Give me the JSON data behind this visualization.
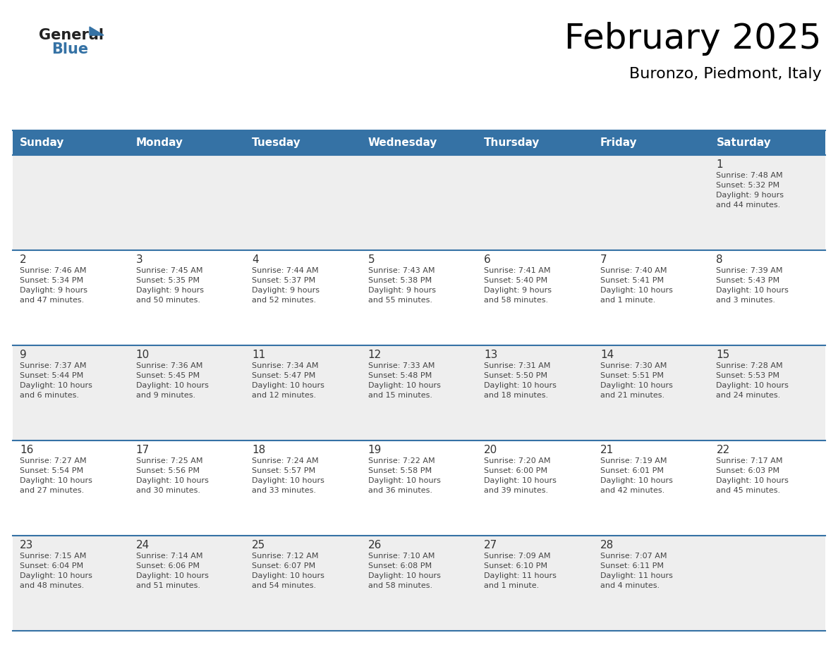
{
  "title": "February 2025",
  "subtitle": "Buronzo, Piedmont, Italy",
  "header_color": "#3572a5",
  "header_text_color": "#ffffff",
  "day_names": [
    "Sunday",
    "Monday",
    "Tuesday",
    "Wednesday",
    "Thursday",
    "Friday",
    "Saturday"
  ],
  "cell_bg_even": "#eeeeee",
  "cell_bg_odd": "#ffffff",
  "grid_line_color": "#3572a5",
  "number_color": "#333333",
  "text_color": "#444444",
  "logo_text_color": "#222222",
  "logo_blue_color": "#3572a5",
  "days": [
    {
      "day": 1,
      "col": 6,
      "row": 0,
      "sunrise": "7:48 AM",
      "sunset": "5:32 PM",
      "daylight": "9 hours and 44 minutes"
    },
    {
      "day": 2,
      "col": 0,
      "row": 1,
      "sunrise": "7:46 AM",
      "sunset": "5:34 PM",
      "daylight": "9 hours and 47 minutes"
    },
    {
      "day": 3,
      "col": 1,
      "row": 1,
      "sunrise": "7:45 AM",
      "sunset": "5:35 PM",
      "daylight": "9 hours and 50 minutes"
    },
    {
      "day": 4,
      "col": 2,
      "row": 1,
      "sunrise": "7:44 AM",
      "sunset": "5:37 PM",
      "daylight": "9 hours and 52 minutes"
    },
    {
      "day": 5,
      "col": 3,
      "row": 1,
      "sunrise": "7:43 AM",
      "sunset": "5:38 PM",
      "daylight": "9 hours and 55 minutes"
    },
    {
      "day": 6,
      "col": 4,
      "row": 1,
      "sunrise": "7:41 AM",
      "sunset": "5:40 PM",
      "daylight": "9 hours and 58 minutes"
    },
    {
      "day": 7,
      "col": 5,
      "row": 1,
      "sunrise": "7:40 AM",
      "sunset": "5:41 PM",
      "daylight": "10 hours and 1 minute"
    },
    {
      "day": 8,
      "col": 6,
      "row": 1,
      "sunrise": "7:39 AM",
      "sunset": "5:43 PM",
      "daylight": "10 hours and 3 minutes"
    },
    {
      "day": 9,
      "col": 0,
      "row": 2,
      "sunrise": "7:37 AM",
      "sunset": "5:44 PM",
      "daylight": "10 hours and 6 minutes"
    },
    {
      "day": 10,
      "col": 1,
      "row": 2,
      "sunrise": "7:36 AM",
      "sunset": "5:45 PM",
      "daylight": "10 hours and 9 minutes"
    },
    {
      "day": 11,
      "col": 2,
      "row": 2,
      "sunrise": "7:34 AM",
      "sunset": "5:47 PM",
      "daylight": "10 hours and 12 minutes"
    },
    {
      "day": 12,
      "col": 3,
      "row": 2,
      "sunrise": "7:33 AM",
      "sunset": "5:48 PM",
      "daylight": "10 hours and 15 minutes"
    },
    {
      "day": 13,
      "col": 4,
      "row": 2,
      "sunrise": "7:31 AM",
      "sunset": "5:50 PM",
      "daylight": "10 hours and 18 minutes"
    },
    {
      "day": 14,
      "col": 5,
      "row": 2,
      "sunrise": "7:30 AM",
      "sunset": "5:51 PM",
      "daylight": "10 hours and 21 minutes"
    },
    {
      "day": 15,
      "col": 6,
      "row": 2,
      "sunrise": "7:28 AM",
      "sunset": "5:53 PM",
      "daylight": "10 hours and 24 minutes"
    },
    {
      "day": 16,
      "col": 0,
      "row": 3,
      "sunrise": "7:27 AM",
      "sunset": "5:54 PM",
      "daylight": "10 hours and 27 minutes"
    },
    {
      "day": 17,
      "col": 1,
      "row": 3,
      "sunrise": "7:25 AM",
      "sunset": "5:56 PM",
      "daylight": "10 hours and 30 minutes"
    },
    {
      "day": 18,
      "col": 2,
      "row": 3,
      "sunrise": "7:24 AM",
      "sunset": "5:57 PM",
      "daylight": "10 hours and 33 minutes"
    },
    {
      "day": 19,
      "col": 3,
      "row": 3,
      "sunrise": "7:22 AM",
      "sunset": "5:58 PM",
      "daylight": "10 hours and 36 minutes"
    },
    {
      "day": 20,
      "col": 4,
      "row": 3,
      "sunrise": "7:20 AM",
      "sunset": "6:00 PM",
      "daylight": "10 hours and 39 minutes"
    },
    {
      "day": 21,
      "col": 5,
      "row": 3,
      "sunrise": "7:19 AM",
      "sunset": "6:01 PM",
      "daylight": "10 hours and 42 minutes"
    },
    {
      "day": 22,
      "col": 6,
      "row": 3,
      "sunrise": "7:17 AM",
      "sunset": "6:03 PM",
      "daylight": "10 hours and 45 minutes"
    },
    {
      "day": 23,
      "col": 0,
      "row": 4,
      "sunrise": "7:15 AM",
      "sunset": "6:04 PM",
      "daylight": "10 hours and 48 minutes"
    },
    {
      "day": 24,
      "col": 1,
      "row": 4,
      "sunrise": "7:14 AM",
      "sunset": "6:06 PM",
      "daylight": "10 hours and 51 minutes"
    },
    {
      "day": 25,
      "col": 2,
      "row": 4,
      "sunrise": "7:12 AM",
      "sunset": "6:07 PM",
      "daylight": "10 hours and 54 minutes"
    },
    {
      "day": 26,
      "col": 3,
      "row": 4,
      "sunrise": "7:10 AM",
      "sunset": "6:08 PM",
      "daylight": "10 hours and 58 minutes"
    },
    {
      "day": 27,
      "col": 4,
      "row": 4,
      "sunrise": "7:09 AM",
      "sunset": "6:10 PM",
      "daylight": "11 hours and 1 minute"
    },
    {
      "day": 28,
      "col": 5,
      "row": 4,
      "sunrise": "7:07 AM",
      "sunset": "6:11 PM",
      "daylight": "11 hours and 4 minutes"
    }
  ]
}
